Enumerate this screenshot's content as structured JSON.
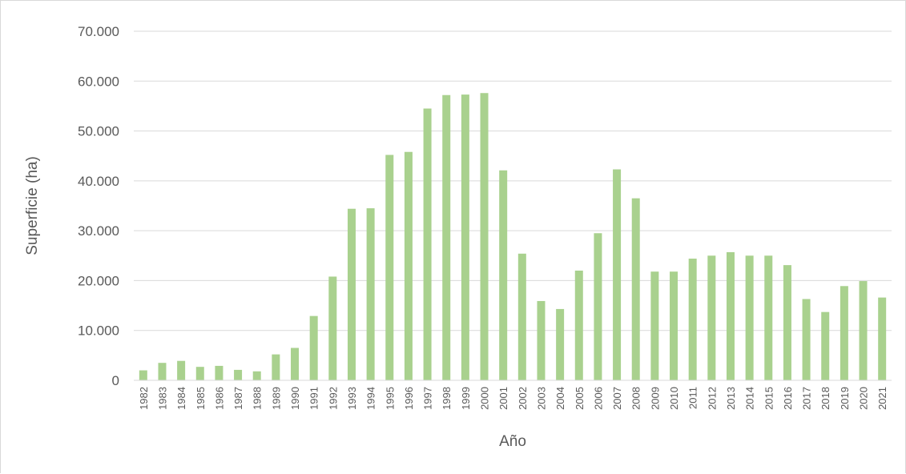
{
  "chart_data": {
    "type": "bar",
    "title": "",
    "xlabel": "Año",
    "ylabel": "Superficie (ha)",
    "ylim": [
      0,
      70000
    ],
    "yticks": [
      0,
      10000,
      20000,
      30000,
      40000,
      50000,
      60000,
      70000
    ],
    "ytick_labels": [
      "0",
      "10.000",
      "20.000",
      "30.000",
      "40.000",
      "50.000",
      "60.000",
      "70.000"
    ],
    "grid": true,
    "legend": "none",
    "bar_color": "#a9d18e",
    "categories": [
      "1982",
      "1983",
      "1984",
      "1985",
      "1986",
      "1987",
      "1988",
      "1989",
      "1990",
      "1991",
      "1992",
      "1993",
      "1994",
      "1995",
      "1996",
      "1997",
      "1998",
      "1999",
      "2000",
      "2001",
      "2002",
      "2003",
      "2004",
      "2005",
      "2006",
      "2007",
      "2008",
      "2009",
      "2010",
      "2011",
      "2012",
      "2013",
      "2014",
      "2015",
      "2016",
      "2017",
      "2018",
      "2019",
      "2020",
      "2021"
    ],
    "values": [
      2000,
      3500,
      3900,
      2700,
      2900,
      2100,
      1800,
      5200,
      6500,
      12900,
      20800,
      34400,
      34500,
      45200,
      45800,
      54500,
      57200,
      57300,
      57600,
      42100,
      25400,
      15900,
      14300,
      22000,
      29500,
      42300,
      36500,
      21800,
      21800,
      24400,
      25000,
      25700,
      25000,
      25000,
      23100,
      16300,
      13700,
      18900,
      19900,
      16600
    ]
  }
}
